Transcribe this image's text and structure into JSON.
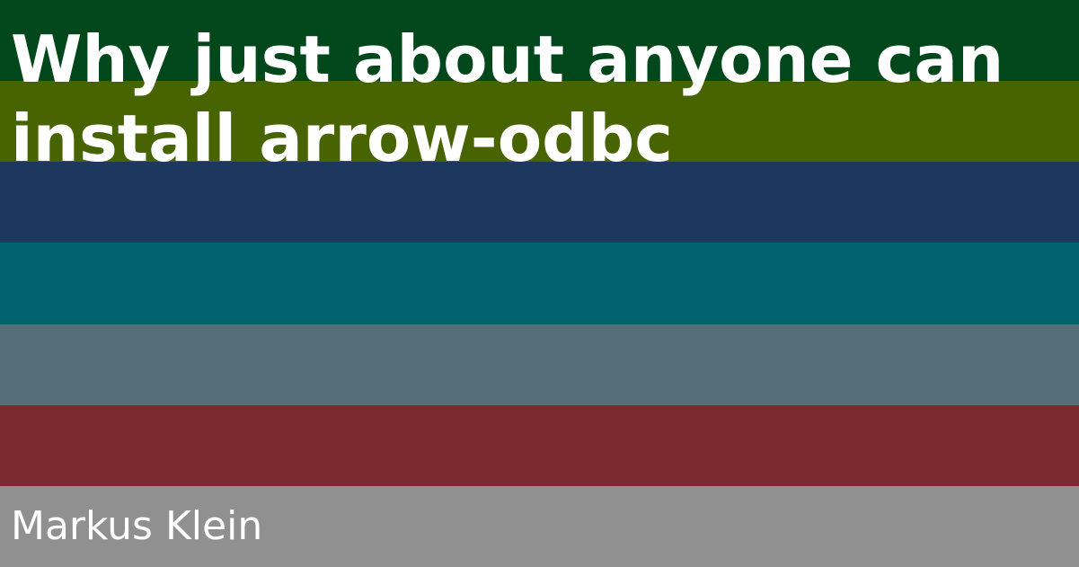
{
  "title": "Why just about anyone can install arrow-odbc",
  "author": "Markus Klein",
  "colors": {
    "text": "#ffffff",
    "stripes": [
      "#00471b",
      "#476400",
      "#1e375f",
      "#00636e",
      "#546e7a",
      "#7b2a30",
      "#909090"
    ]
  }
}
